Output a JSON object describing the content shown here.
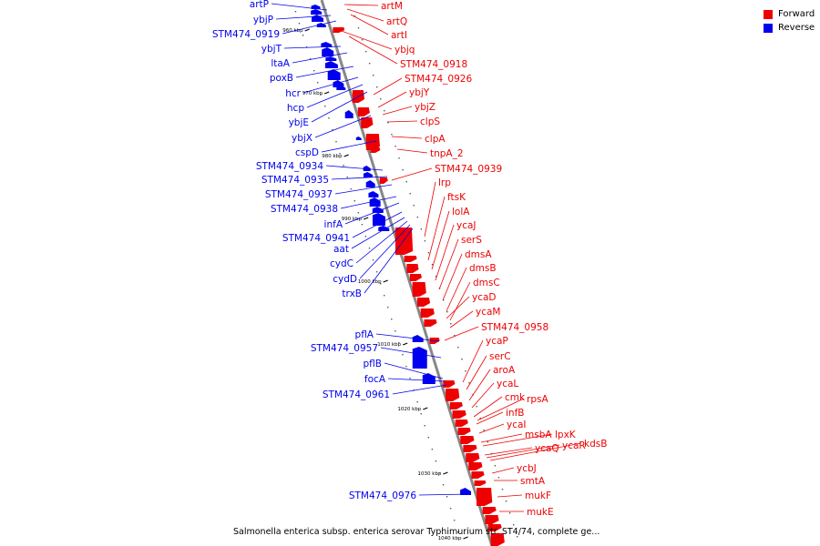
{
  "legend": {
    "forward_label": "Forward",
    "reverse_label": "Reverse",
    "forward_color": "#ee0000",
    "reverse_color": "#0000ee"
  },
  "caption": "Salmonella enterica subsp. enterica serovar Typhimurium str. ST4/74, complete ge...",
  "colors": {
    "backbone": "#888888",
    "forward": "#ee0000",
    "reverse": "#0000ee"
  },
  "ticks": [
    "960 kbp",
    "970 kbp",
    "980 kbp",
    "990 kbp",
    "1000 kbp",
    "1010 kbp",
    "1020 kbp",
    "1030 kbp",
    "1040 kbp"
  ],
  "reverse_genes": [
    "artP",
    "ybjP",
    "STM474_0919",
    "ybjT",
    "ltaA",
    "poxB",
    "hcr",
    "hcp",
    "ybjE",
    "ybjX",
    "cspD",
    "STM474_0934",
    "STM474_0935",
    "STM474_0937",
    "STM474_0938",
    "infA",
    "STM474_0941",
    "aat",
    "cydC",
    "cydD",
    "trxB",
    "pflA",
    "STM474_0957",
    "pflB",
    "focA",
    "STM474_0961",
    "STM474_0976"
  ],
  "forward_genes": [
    "artM",
    "artQ",
    "artI",
    "ybjq",
    "STM474_0918",
    "STM474_0926",
    "ybjY",
    "ybjZ",
    "clpS",
    "clpA",
    "tnpA_2",
    "STM474_0939",
    "lrp",
    "ftsK",
    "lolA",
    "ycaJ",
    "serS",
    "dmsA",
    "dmsB",
    "dmsC",
    "ycaD",
    "ycaM",
    "STM474_0958",
    "ycaP",
    "serC",
    "aroA",
    "ycaL",
    "cmk",
    "rpsA",
    "infB",
    "ycaI",
    "msbA",
    "lpxK",
    "ycaQ",
    "ycaR",
    "kdsB",
    "ycbJ",
    "smtA",
    "mukF",
    "mukE"
  ]
}
